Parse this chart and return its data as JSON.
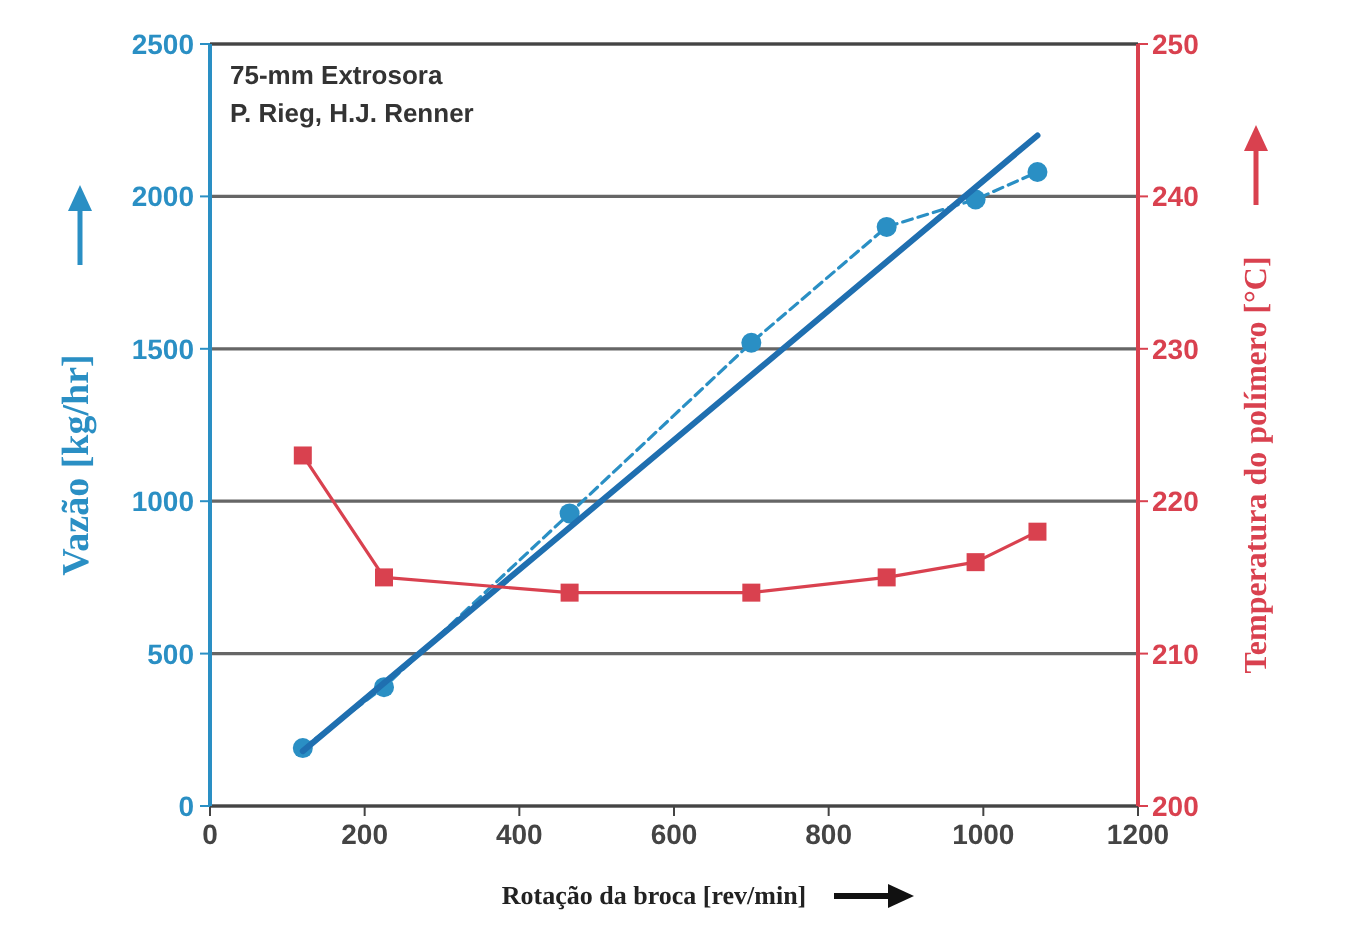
{
  "chart_data": {
    "type": "line",
    "xlabel": "Rotação da broca [rev/min]",
    "ylabel": "Vazão [kg/hr]",
    "y2label": "Temperatura do polímero [°C]",
    "annotations": [
      "75-mm Extrosora",
      "P. Rieg, H.J. Renner"
    ],
    "x": [
      120,
      225,
      465,
      700,
      875,
      990,
      1070
    ],
    "series": [
      {
        "color": "#2a8fc4",
        "values": [
          190,
          390,
          960,
          1520,
          1900,
          1990,
          2080
        ],
        "marker": "circle",
        "line_style": "dashed"
      },
      {
        "type": "line",
        "color": "#1f6fb0",
        "x": [
          120,
          1070
        ],
        "values": [
          180,
          2200
        ],
        "marker": "none",
        "line_style": "solid"
      },
      {
        "color": "#d9414f",
        "values": [
          223,
          215,
          214,
          214,
          215,
          216,
          218
        ],
        "marker": "square",
        "line_style": "solid",
        "axis": "y2"
      }
    ],
    "xlim": [
      0,
      1200
    ],
    "xticks": [
      0,
      200,
      400,
      600,
      800,
      1000,
      1200
    ],
    "ylim": [
      0,
      2500
    ],
    "yticks": [
      0,
      500,
      1000,
      1500,
      2000,
      2500
    ],
    "y2lim": [
      200,
      250
    ],
    "y2ticks": [
      200,
      210,
      220,
      230,
      240,
      250
    ],
    "grid": "y"
  }
}
